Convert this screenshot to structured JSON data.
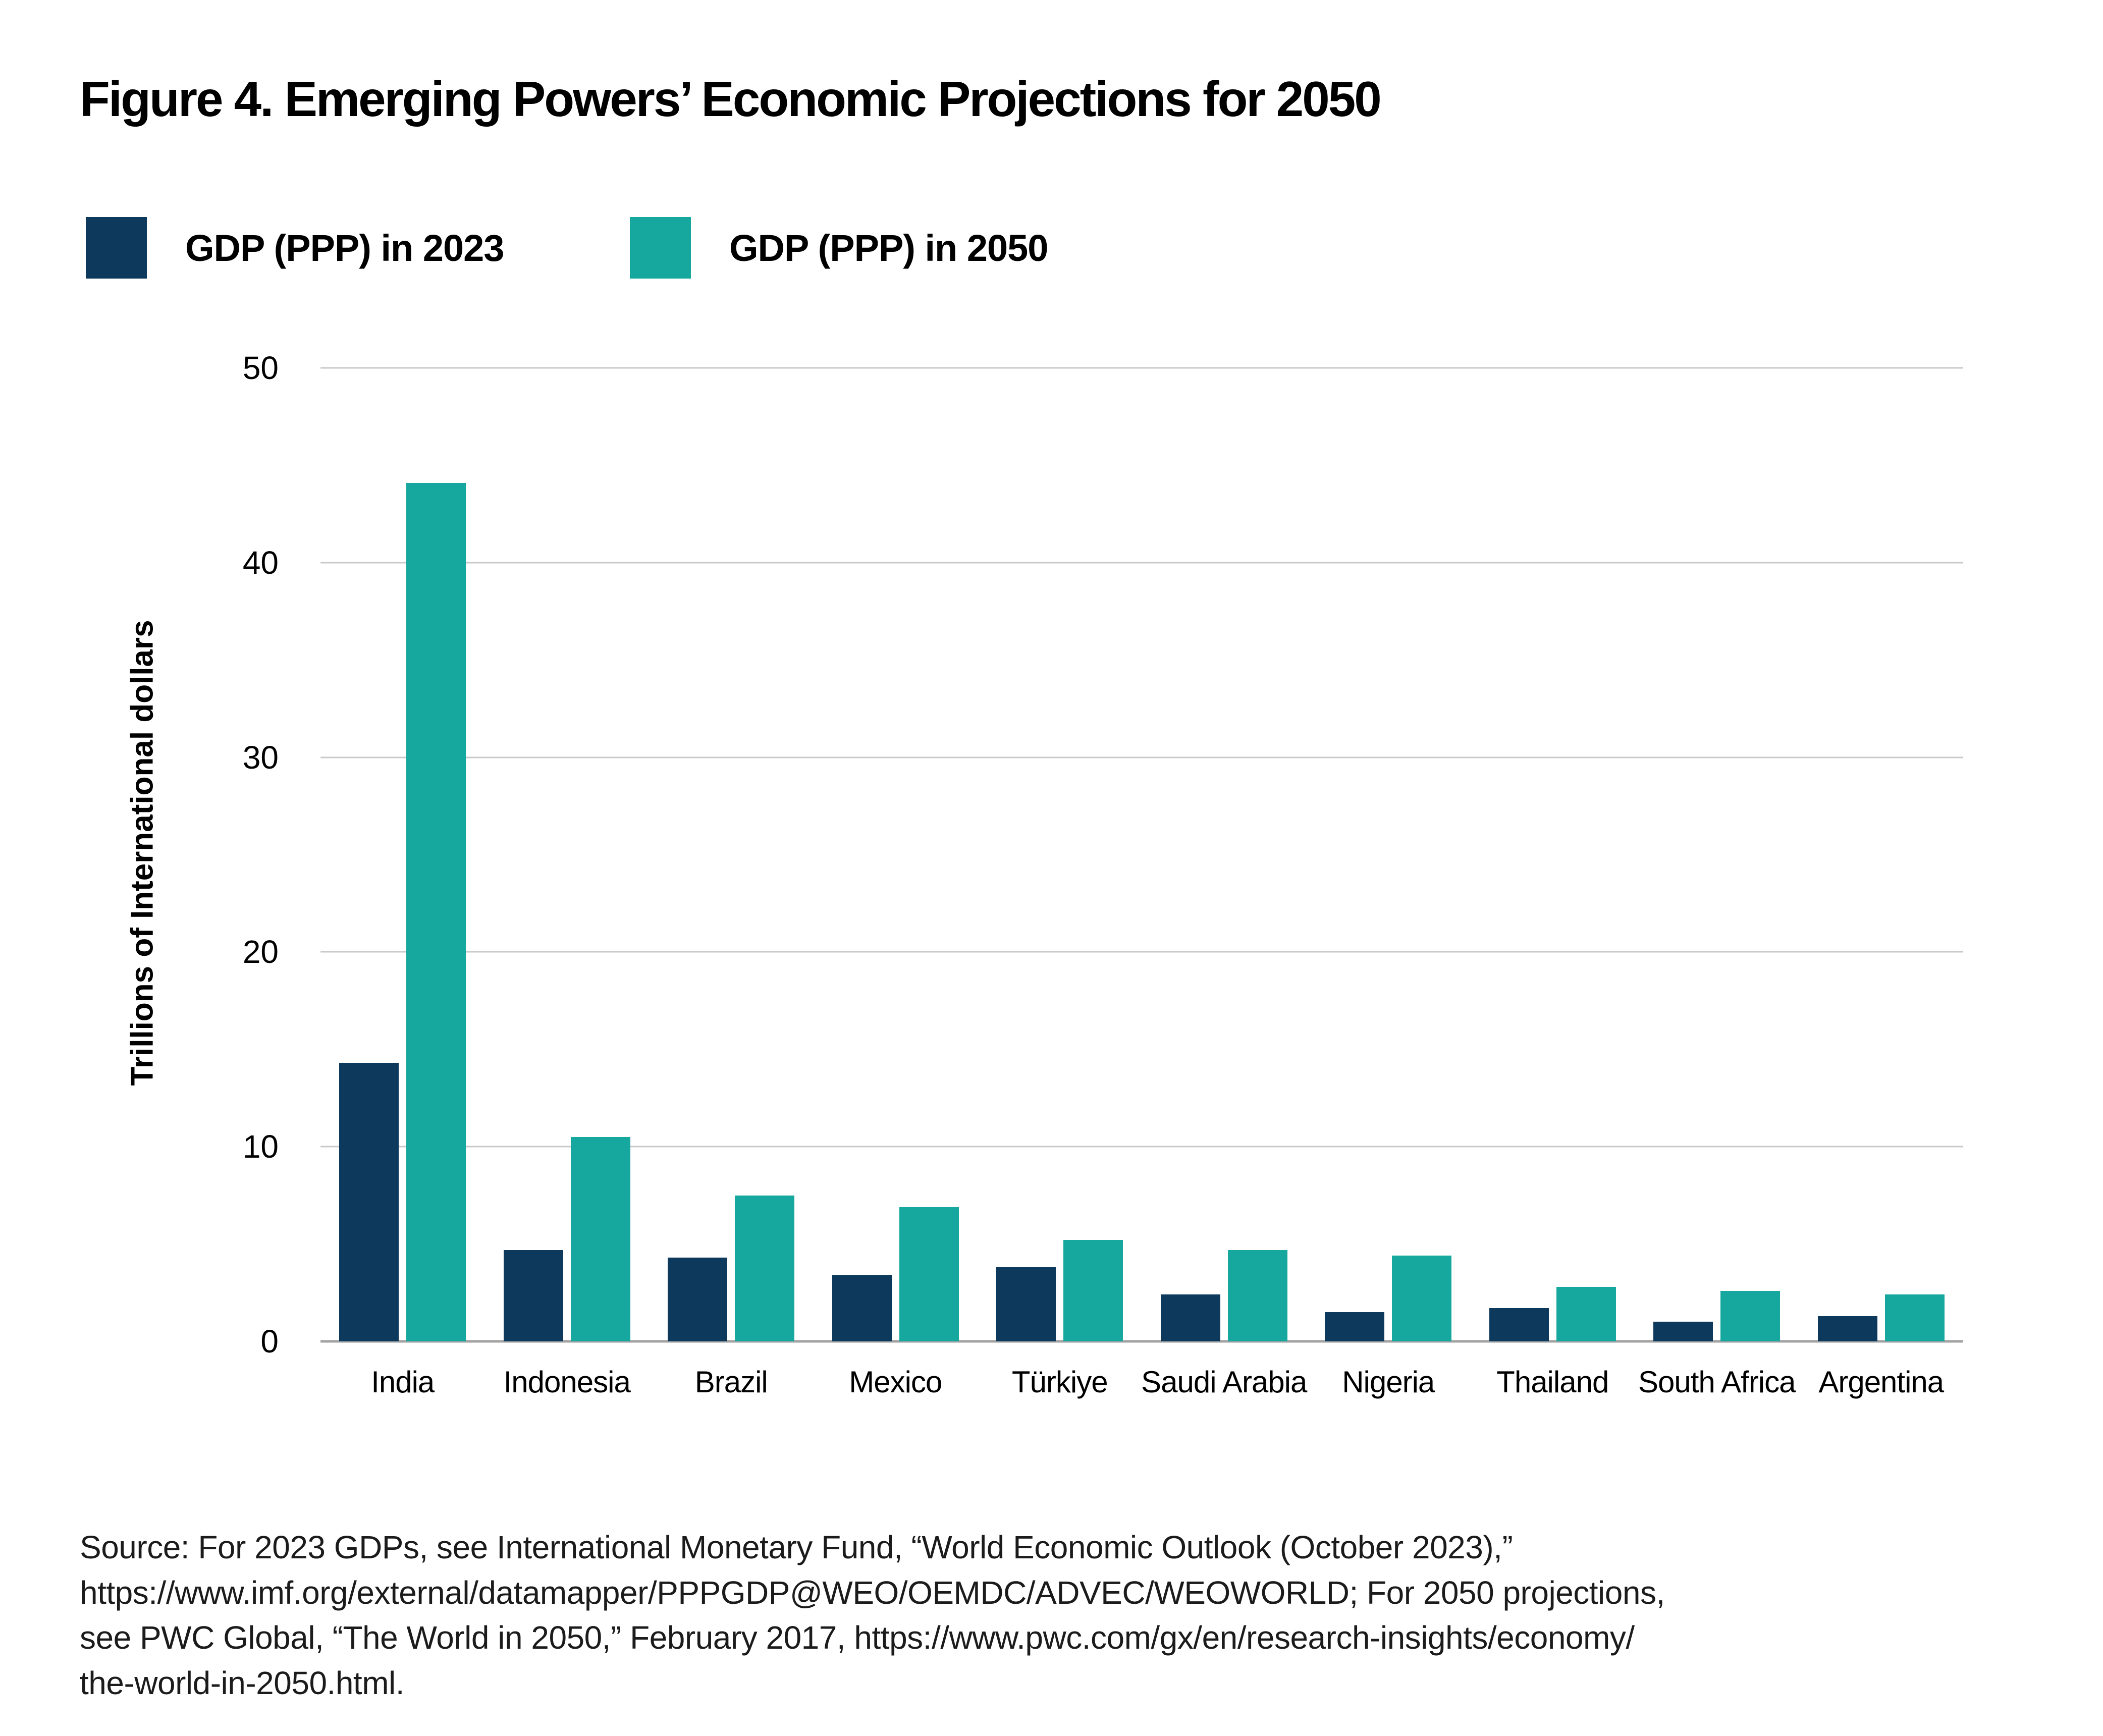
{
  "page": {
    "background_color": "#ffffff",
    "accent_navy": "#0d3a5c",
    "accent_teal": "#16a79e",
    "gridline_color": "#c9c9c9",
    "baseline_color": "#a3a3a3"
  },
  "header": {
    "title": "Figure 4. Emerging Powers’ Economic Projections for 2050"
  },
  "chart_data": {
    "type": "bar",
    "title": "Figure 4. Emerging Powers’ Economic Projections for 2050",
    "categories": [
      "India",
      "Indonesia",
      "Brazil",
      "Mexico",
      "Türkiye",
      "Saudi Arabia",
      "Nigeria",
      "Thailand",
      "South Africa",
      "Argentina"
    ],
    "series": [
      {
        "name": "GDP (PPP) in 2023",
        "color": "#0d3a5c",
        "values": [
          14.3,
          4.7,
          4.3,
          3.4,
          3.8,
          2.4,
          1.5,
          1.7,
          1.0,
          1.3
        ]
      },
      {
        "name": "GDP (PPP) in 2050",
        "color": "#16a79e",
        "values": [
          44.1,
          10.5,
          7.5,
          6.9,
          5.2,
          4.7,
          4.4,
          2.8,
          2.6,
          2.4
        ]
      }
    ],
    "xlabel": "",
    "ylabel": "Trillions of International dollars",
    "ylim": [
      0,
      50
    ],
    "yticks": [
      0,
      10,
      20,
      30,
      40,
      50
    ],
    "grid": true,
    "legend_position": "top-left"
  },
  "source": {
    "text": "Source: For 2023 GDPs, see International Monetary Fund, “World Economic Outlook (October 2023),”\nhttps://www.imf.org/external/datamapper/PPPGDP@WEO/OEMDC/ADVEC/WEOWORLD; For 2050 projections,\nsee PWC Global, “The World in 2050,” February 2017, https://www.pwc.com/gx/en/research-insights/economy/\nthe-world-in-2050.html."
  }
}
